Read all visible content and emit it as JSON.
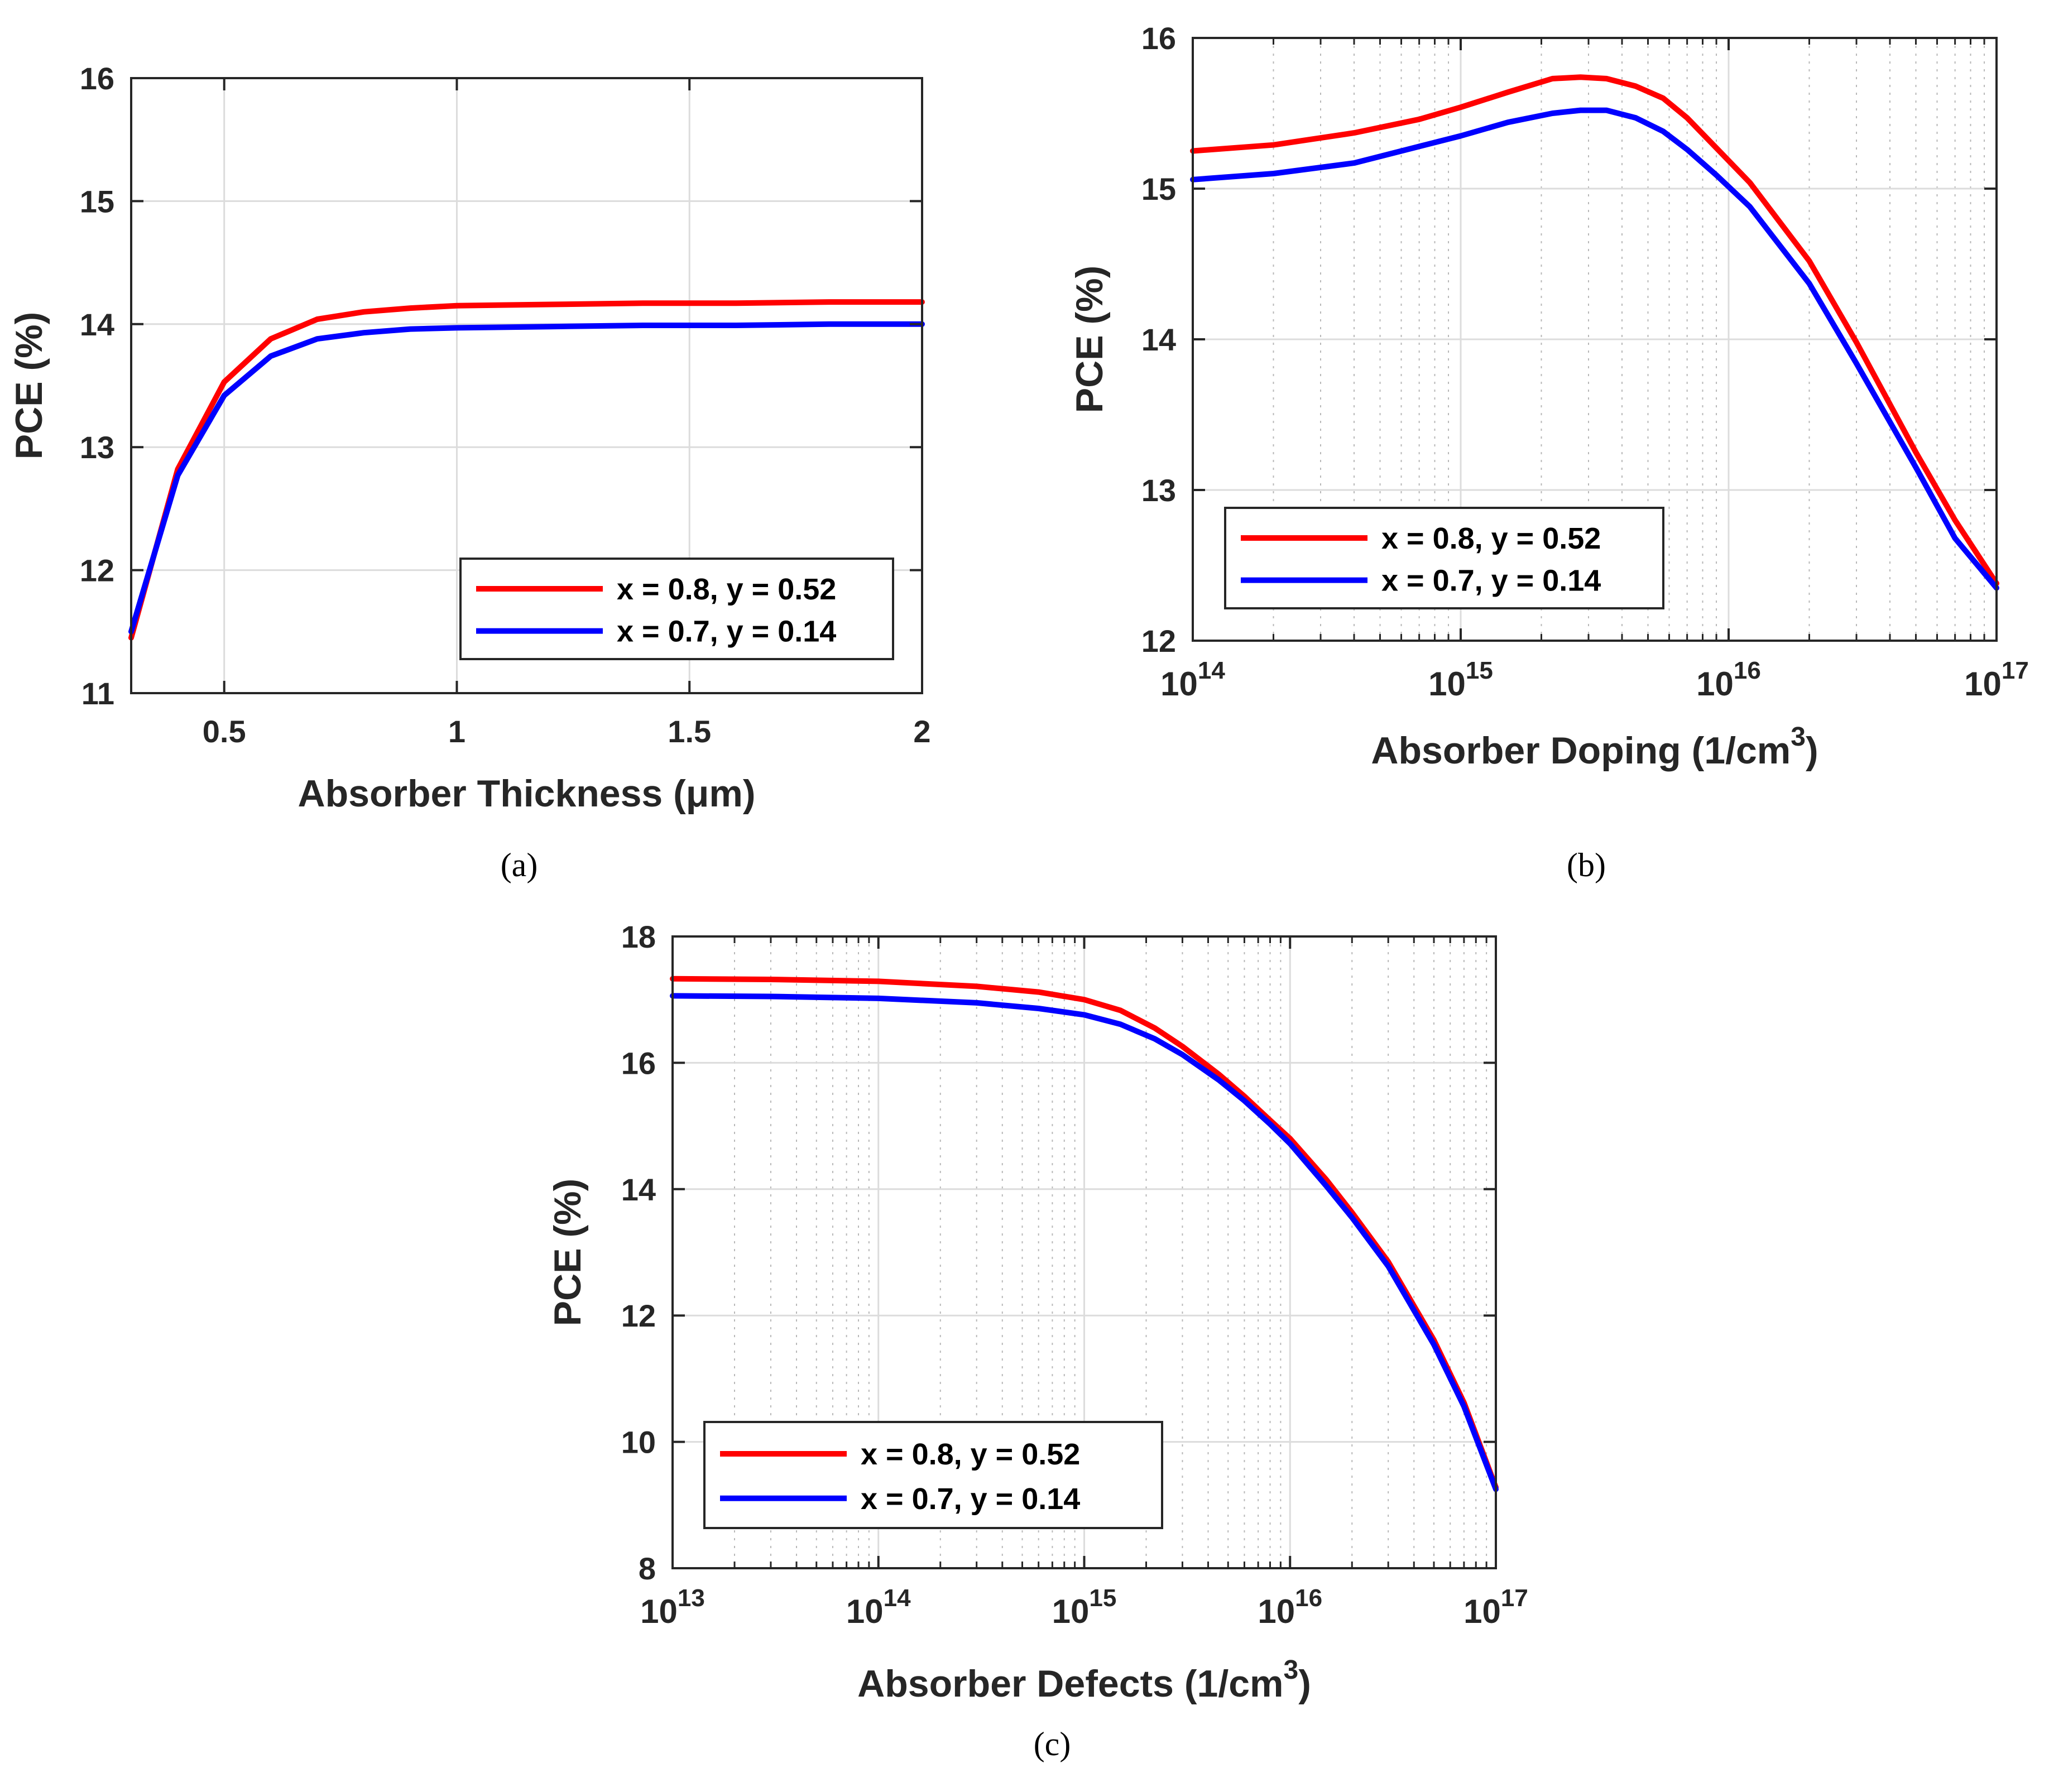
{
  "chart_data": [
    {
      "type": "line",
      "caption": "(a)",
      "xlabel": "Absorber Thickness (μm)",
      "ylabel": "PCE (%)",
      "xscale": "linear",
      "xlim": [
        0.3,
        2
      ],
      "ylim": [
        11,
        16
      ],
      "xticks": [
        0.5,
        1,
        1.5,
        2
      ],
      "xtick_labels": [
        "0.5",
        "1",
        "1.5",
        "2"
      ],
      "yticks": [
        11,
        12,
        13,
        14,
        15,
        16
      ],
      "ytick_labels": [
        "11",
        "12",
        "13",
        "14",
        "15",
        "16"
      ],
      "grid": true,
      "legend_position": "bottom-right",
      "series": [
        {
          "name": "x = 0.8, y = 0.52",
          "color": "#ff0000",
          "x": [
            0.3,
            0.4,
            0.5,
            0.6,
            0.7,
            0.8,
            0.9,
            1.0,
            1.2,
            1.4,
            1.6,
            1.8,
            2.0
          ],
          "y": [
            11.45,
            12.82,
            13.53,
            13.88,
            14.04,
            14.1,
            14.13,
            14.15,
            14.16,
            14.17,
            14.17,
            14.18,
            14.18
          ]
        },
        {
          "name": "x = 0.7, y = 0.14",
          "color": "#0000ff",
          "x": [
            0.3,
            0.4,
            0.5,
            0.6,
            0.7,
            0.8,
            0.9,
            1.0,
            1.2,
            1.4,
            1.6,
            1.8,
            2.0
          ],
          "y": [
            11.5,
            12.77,
            13.42,
            13.74,
            13.88,
            13.93,
            13.96,
            13.97,
            13.98,
            13.99,
            13.99,
            14.0,
            14.0
          ]
        }
      ]
    },
    {
      "type": "line",
      "caption": "(b)",
      "xlabel": "Absorber Doping (1/cm",
      "xlabel_sup": "3",
      "xlabel_suffix": ")",
      "ylabel": "PCE (%)",
      "xscale": "log",
      "xlim": [
        100000000000000.0,
        1e+17
      ],
      "ylim": [
        12,
        16
      ],
      "xticks": [
        100000000000000.0,
        1000000000000000.0,
        1e+16,
        1e+17
      ],
      "xtick_bases": [
        "10",
        "10",
        "10",
        "10"
      ],
      "xtick_exps": [
        "14",
        "15",
        "16",
        "17"
      ],
      "yticks": [
        12,
        13,
        14,
        15,
        16
      ],
      "ytick_labels": [
        "12",
        "13",
        "14",
        "15",
        "16"
      ],
      "grid": true,
      "legend_position": "bottom-left",
      "series": [
        {
          "name": "x = 0.8, y = 0.52",
          "color": "#ff0000",
          "x": [
            100000000000000.0,
            200000000000000.0,
            400000000000000.0,
            700000000000000.0,
            1000000000000000.0,
            1500000000000000.0,
            2200000000000000.0,
            2800000000000000.0,
            3500000000000000.0,
            4500000000000000.0,
            5700000000000000.0,
            7000000000000000.0,
            9000000000000000.0,
            1.2e+16,
            2e+16,
            3e+16,
            5e+16,
            7e+16,
            1e+17
          ],
          "y": [
            15.25,
            15.29,
            15.37,
            15.46,
            15.54,
            15.64,
            15.73,
            15.74,
            15.73,
            15.68,
            15.6,
            15.47,
            15.27,
            15.04,
            14.52,
            13.98,
            13.25,
            12.8,
            12.38
          ]
        },
        {
          "name": "x = 0.7, y = 0.14",
          "color": "#0000ff",
          "x": [
            100000000000000.0,
            200000000000000.0,
            400000000000000.0,
            700000000000000.0,
            1000000000000000.0,
            1500000000000000.0,
            2200000000000000.0,
            2800000000000000.0,
            3500000000000000.0,
            4500000000000000.0,
            5700000000000000.0,
            7000000000000000.0,
            9000000000000000.0,
            1.2e+16,
            2e+16,
            3e+16,
            5e+16,
            7e+16,
            1e+17
          ],
          "y": [
            15.06,
            15.1,
            15.17,
            15.28,
            15.35,
            15.44,
            15.5,
            15.52,
            15.52,
            15.47,
            15.38,
            15.26,
            15.09,
            14.88,
            14.37,
            13.84,
            13.15,
            12.68,
            12.35
          ]
        }
      ]
    },
    {
      "type": "line",
      "caption": "(c)",
      "xlabel": "Absorber Defects (1/cm",
      "xlabel_sup": "3",
      "xlabel_suffix": ")",
      "ylabel": "PCE (%)",
      "xscale": "log",
      "xlim": [
        10000000000000.0,
        1e+17
      ],
      "ylim": [
        8,
        18
      ],
      "xticks": [
        10000000000000.0,
        100000000000000.0,
        1000000000000000.0,
        1e+16,
        1e+17
      ],
      "xtick_bases": [
        "10",
        "10",
        "10",
        "10",
        "10"
      ],
      "xtick_exps": [
        "13",
        "14",
        "15",
        "16",
        "17"
      ],
      "yticks": [
        8,
        10,
        12,
        14,
        16,
        18
      ],
      "ytick_labels": [
        "8",
        "10",
        "12",
        "14",
        "16",
        "18"
      ],
      "grid": true,
      "legend_position": "bottom-left",
      "series": [
        {
          "name": "x = 0.8, y = 0.52",
          "color": "#ff0000",
          "x": [
            10000000000000.0,
            30000000000000.0,
            100000000000000.0,
            300000000000000.0,
            600000000000000.0,
            1000000000000000.0,
            1500000000000000.0,
            2200000000000000.0,
            3000000000000000.0,
            4500000000000000.0,
            6000000000000000.0,
            8000000000000000.0,
            1e+16,
            1.5e+16,
            2e+16,
            3e+16,
            5e+16,
            7e+16,
            1e+17
          ],
          "y": [
            17.33,
            17.32,
            17.29,
            17.21,
            17.12,
            17.0,
            16.83,
            16.55,
            16.26,
            15.82,
            15.47,
            15.09,
            14.8,
            14.15,
            13.63,
            12.85,
            11.61,
            10.62,
            9.28
          ]
        },
        {
          "name": "x = 0.7, y = 0.14",
          "color": "#0000ff",
          "x": [
            10000000000000.0,
            30000000000000.0,
            100000000000000.0,
            300000000000000.0,
            600000000000000.0,
            1000000000000000.0,
            1500000000000000.0,
            2200000000000000.0,
            3000000000000000.0,
            4500000000000000.0,
            6000000000000000.0,
            8000000000000000.0,
            1e+16,
            1.5e+16,
            2e+16,
            3e+16,
            5e+16,
            7e+16,
            1e+17
          ],
          "y": [
            17.06,
            17.05,
            17.02,
            16.95,
            16.86,
            16.76,
            16.61,
            16.38,
            16.13,
            15.73,
            15.4,
            15.03,
            14.72,
            14.05,
            13.55,
            12.78,
            11.54,
            10.56,
            9.25
          ]
        }
      ]
    }
  ]
}
